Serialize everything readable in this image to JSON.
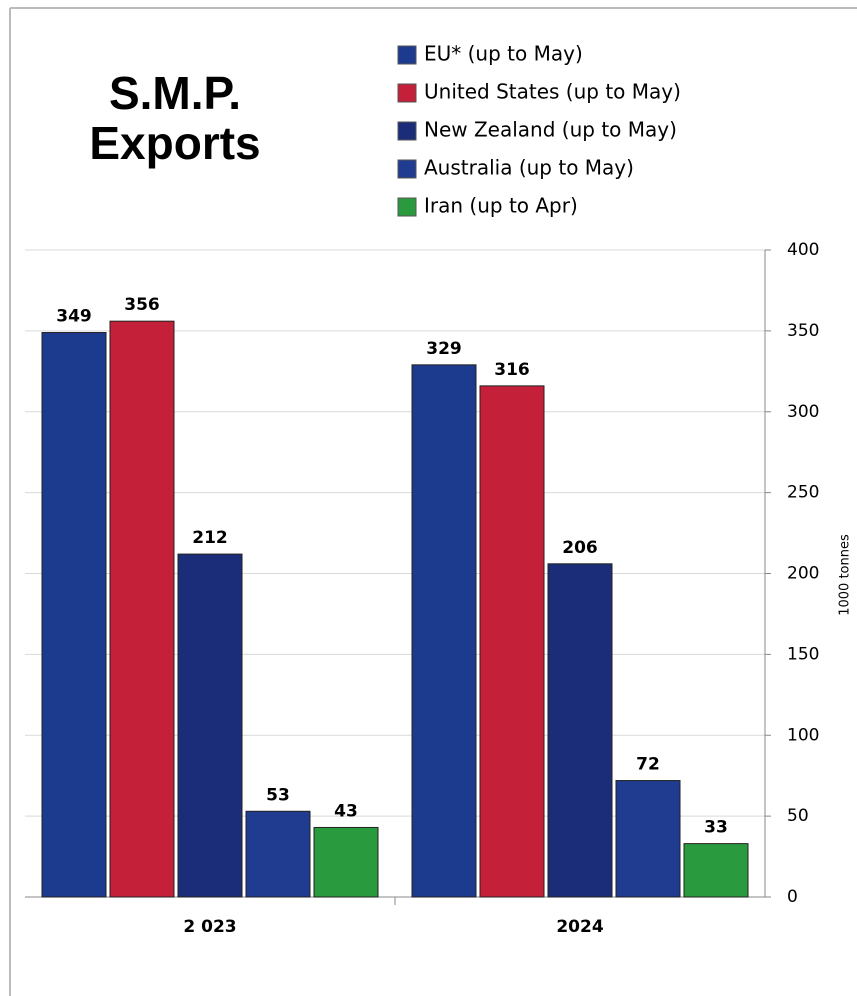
{
  "chart_data": {
    "type": "bar",
    "title": "S.M.P. Exports",
    "y_label": "1000 tonnes",
    "categories": [
      "2 023",
      "2024"
    ],
    "series": [
      {
        "name": "EU* (up to May)",
        "color": "#1c3a8e",
        "values": [
          349,
          329
        ]
      },
      {
        "name": "United States (up to May)",
        "color": "#c4203a",
        "values": [
          356,
          316
        ]
      },
      {
        "name": "New Zealand (up to May)",
        "color": "#1b2d78",
        "values": [
          212,
          206
        ]
      },
      {
        "name": "Australia (up to May)",
        "color": "#1f3c90",
        "values": [
          53,
          72
        ]
      },
      {
        "name": "Iran (up to Apr)",
        "color": "#2a9a3e",
        "values": [
          43,
          33
        ]
      }
    ],
    "ylim": [
      0,
      400
    ],
    "yticks": [
      0,
      50,
      100,
      150,
      200,
      250,
      300,
      350,
      400
    ],
    "grid": true
  }
}
